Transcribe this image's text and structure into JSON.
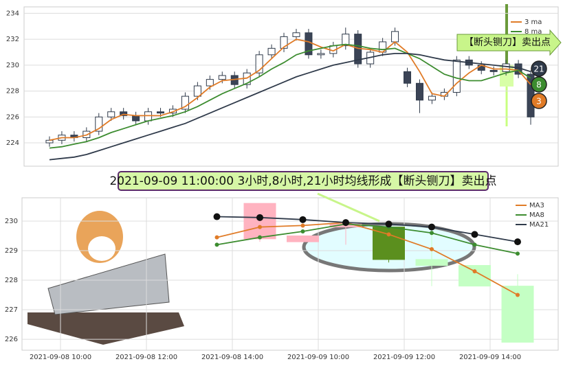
{
  "chart_data": [
    {
      "type": "candlestick",
      "categories": [
        null,
        null,
        null,
        null,
        null,
        null,
        null,
        null,
        null,
        null,
        null,
        null,
        null,
        null,
        null,
        null,
        null,
        null,
        null,
        null,
        null,
        null,
        null,
        null,
        null,
        null,
        null,
        null,
        null,
        null,
        null,
        null,
        null,
        null,
        null,
        null,
        null,
        null,
        null,
        null
      ],
      "open": [
        224.0,
        224.2,
        224.6,
        224.4,
        224.9,
        226.0,
        226.4,
        226.1,
        225.7,
        226.4,
        226.3,
        226.6,
        227.6,
        228.4,
        228.9,
        229.2,
        228.5,
        229.4,
        230.8,
        231.3,
        232.2,
        232.5,
        230.8,
        230.9,
        231.5,
        232.4,
        230.1,
        231.0,
        231.8,
        229.5,
        228.6,
        227.3,
        227.6,
        227.9,
        230.4,
        230.0,
        229.6,
        229.5,
        230.1,
        229.3
      ],
      "high": [
        224.5,
        224.9,
        224.9,
        225.2,
        226.3,
        226.7,
        226.7,
        226.4,
        226.7,
        226.7,
        226.9,
        227.9,
        228.7,
        229.2,
        229.5,
        229.5,
        229.7,
        231.1,
        231.6,
        232.5,
        232.8,
        232.8,
        231.2,
        231.8,
        232.9,
        232.7,
        231.3,
        232.1,
        232.9,
        229.8,
        228.9,
        227.9,
        228.2,
        230.7,
        230.7,
        230.3,
        229.9,
        230.4,
        230.4,
        229.6
      ],
      "low": [
        223.7,
        223.9,
        224.1,
        224.1,
        224.6,
        225.7,
        225.8,
        225.4,
        225.4,
        226.0,
        226.0,
        226.3,
        227.3,
        228.1,
        228.6,
        228.2,
        228.2,
        229.1,
        230.5,
        231.0,
        231.9,
        230.5,
        230.5,
        230.6,
        231.2,
        229.8,
        229.8,
        230.7,
        231.5,
        228.3,
        226.3,
        227.0,
        227.3,
        227.6,
        229.7,
        229.3,
        229.2,
        229.2,
        229.0,
        225.4
      ],
      "close": [
        224.2,
        224.6,
        224.4,
        224.9,
        226.0,
        226.4,
        226.1,
        225.7,
        226.4,
        226.3,
        226.6,
        227.6,
        228.4,
        228.9,
        229.2,
        228.5,
        229.4,
        230.8,
        231.3,
        232.2,
        232.5,
        230.8,
        230.9,
        231.5,
        232.4,
        230.1,
        231.0,
        231.8,
        232.6,
        228.6,
        227.3,
        227.6,
        227.9,
        230.4,
        230.0,
        229.6,
        229.5,
        230.1,
        229.3,
        226.0
      ],
      "up_color": "#ffffff",
      "down_color": "#3b4456",
      "series": [
        {
          "name": "3 ma",
          "color": "#e07b27",
          "end_label": "3",
          "values": [
            224.2,
            224.4,
            224.4,
            224.6,
            225.1,
            225.8,
            226.2,
            226.1,
            226.1,
            226.1,
            226.4,
            226.8,
            227.5,
            228.3,
            228.8,
            228.9,
            229.0,
            229.6,
            230.5,
            231.4,
            232.0,
            231.8,
            231.4,
            231.1,
            231.6,
            231.3,
            231.2,
            231.0,
            231.8,
            231.0,
            229.5,
            227.8,
            227.6,
            228.6,
            229.4,
            230.0,
            229.7,
            229.7,
            229.6,
            228.5
          ]
        },
        {
          "name": "8 ma",
          "color": "#3c8c2f",
          "end_label": "8",
          "values": [
            223.6,
            223.7,
            223.9,
            224.1,
            224.4,
            224.8,
            225.1,
            225.4,
            225.7,
            225.9,
            226.1,
            226.4,
            226.8,
            227.3,
            227.8,
            228.2,
            228.6,
            229.1,
            229.7,
            230.2,
            230.8,
            231.1,
            231.3,
            231.5,
            231.6,
            231.5,
            231.3,
            231.2,
            231.3,
            230.9,
            230.5,
            229.9,
            229.3,
            229.0,
            228.8,
            228.8,
            229.1,
            229.4,
            229.6,
            229.0
          ]
        },
        {
          "color": "#2f3a4a",
          "end_label": "21",
          "values": [
            222.7,
            222.8,
            222.9,
            223.1,
            223.4,
            223.7,
            224.0,
            224.3,
            224.6,
            224.9,
            225.2,
            225.5,
            225.9,
            226.3,
            226.7,
            227.1,
            227.5,
            227.9,
            228.3,
            228.7,
            229.1,
            229.4,
            229.7,
            230.0,
            230.2,
            230.4,
            230.6,
            230.8,
            230.9,
            230.9,
            230.8,
            230.6,
            230.4,
            230.3,
            230.2,
            230.1,
            230.0,
            229.9,
            229.8,
            229.5
          ]
        }
      ],
      "ylim": [
        222.2,
        234.5
      ],
      "yticks": [
        224,
        226,
        228,
        230,
        232,
        234
      ],
      "grid": true,
      "annotation": "【断头铡刀】卖出点"
    },
    {
      "type": "candlestick",
      "title": "2021-09-09 11:00:00 3小时,8小时,21小时均线形成【断头铡刀】卖出点",
      "categories": [
        "2021-09-08 10:00",
        null,
        "2021-09-08 12:00",
        null,
        "2021-09-08 14:00",
        null,
        "2021-09-09 10:00",
        null,
        "2021-09-09 12:00",
        null,
        "2021-09-09 14:00"
      ],
      "open": [
        null,
        null,
        null,
        null,
        229.4,
        229.3,
        229.8,
        229.8,
        228.7,
        228.5,
        227.8
      ],
      "high": [
        null,
        null,
        null,
        null,
        230.6,
        229.5,
        230.0,
        229.9,
        229.7,
        228.5,
        228.2
      ],
      "low": [
        null,
        null,
        null,
        null,
        229.3,
        229.3,
        229.2,
        228.6,
        227.8,
        227.8,
        225.9
      ],
      "close": [
        null,
        null,
        null,
        null,
        230.6,
        229.5,
        229.9,
        228.7,
        228.5,
        227.8,
        225.9
      ],
      "colors": [
        null,
        null,
        null,
        null,
        "#ffb3c0",
        "#ffb3c0",
        "#ffb3c0",
        "#5b8f1e",
        "#c4ffc4",
        "#c4ffc4",
        "#c4ffc4"
      ],
      "series": [
        {
          "name": "MA3",
          "color": "#e07b27",
          "values": [
            null,
            null,
            null,
            229.45,
            229.8,
            229.85,
            229.95,
            229.55,
            229.05,
            228.3,
            227.5
          ]
        },
        {
          "name": "MA8",
          "color": "#3c8c2f",
          "values": [
            null,
            null,
            null,
            229.2,
            229.45,
            229.65,
            229.9,
            229.8,
            229.6,
            229.2,
            228.9
          ]
        },
        {
          "name": "MA21",
          "color": "#2f3a4a",
          "values": [
            null,
            null,
            null,
            230.15,
            230.12,
            230.05,
            229.95,
            229.9,
            229.8,
            229.55,
            229.3
          ]
        }
      ],
      "ylim": [
        225.63,
        230.79
      ],
      "yticks": [
        226,
        227,
        228,
        229,
        230
      ],
      "grid": true
    }
  ]
}
